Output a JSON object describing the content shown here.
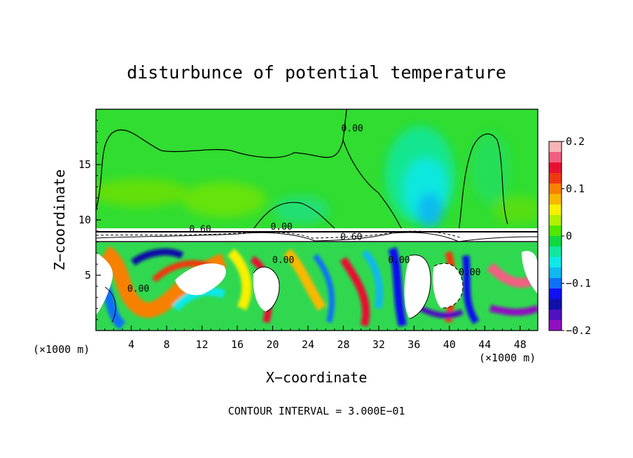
{
  "chart_data": {
    "type": "heatmap",
    "title": "disturbunce of potential temperature",
    "xlabel": "X−coordinate",
    "ylabel": "Z−coordinate",
    "x_unit_left": "(×1000 m)",
    "x_unit_right": "(×1000 m)",
    "xlim": [
      0,
      50
    ],
    "ylim": [
      0,
      20
    ],
    "x_ticks": [
      4,
      8,
      12,
      16,
      20,
      24,
      28,
      32,
      36,
      40,
      44,
      48
    ],
    "x_tick_labels": [
      "4",
      "8",
      "12",
      "16",
      "20",
      "24",
      "28",
      "32",
      "36",
      "40",
      "44",
      "48"
    ],
    "y_ticks": [
      5,
      10,
      15
    ],
    "y_tick_labels": [
      "5",
      "10",
      "15"
    ],
    "colorbar": {
      "range": [
        -0.2,
        0.2
      ],
      "tick_values": [
        0.2,
        0.1,
        0,
        -0.1,
        -0.2
      ],
      "tick_labels": [
        "0.2",
        "0.1",
        "0",
        "−0.1",
        "−0.2"
      ],
      "colors": [
        "#f8b4b4",
        "#f06080",
        "#e81030",
        "#f03810",
        "#f88000",
        "#f8b800",
        "#f8f000",
        "#b0f000",
        "#50e800",
        "#10d840",
        "#10e8a0",
        "#10e8e8",
        "#10b8f0",
        "#1070f8",
        "#1010f0",
        "#1010a8",
        "#5010c0",
        "#9010c0"
      ]
    },
    "contour_labels": [
      {
        "x": 29.0,
        "z": 18.0,
        "text": "0.00"
      },
      {
        "x": 11.8,
        "z": 8.9,
        "text": "0.60"
      },
      {
        "x": 21.0,
        "z": 9.1,
        "text": "0.00"
      },
      {
        "x": 28.9,
        "z": 8.2,
        "text": "0.60"
      },
      {
        "x": 21.2,
        "z": 6.1,
        "text": "0.00"
      },
      {
        "x": 4.8,
        "z": 3.5,
        "text": "0.00"
      },
      {
        "x": 34.3,
        "z": 6.1,
        "text": "0.00"
      },
      {
        "x": 42.3,
        "z": 5.0,
        "text": "0.00"
      }
    ],
    "annotation": "CONTOUR INTERVAL = 3.000E−01"
  }
}
